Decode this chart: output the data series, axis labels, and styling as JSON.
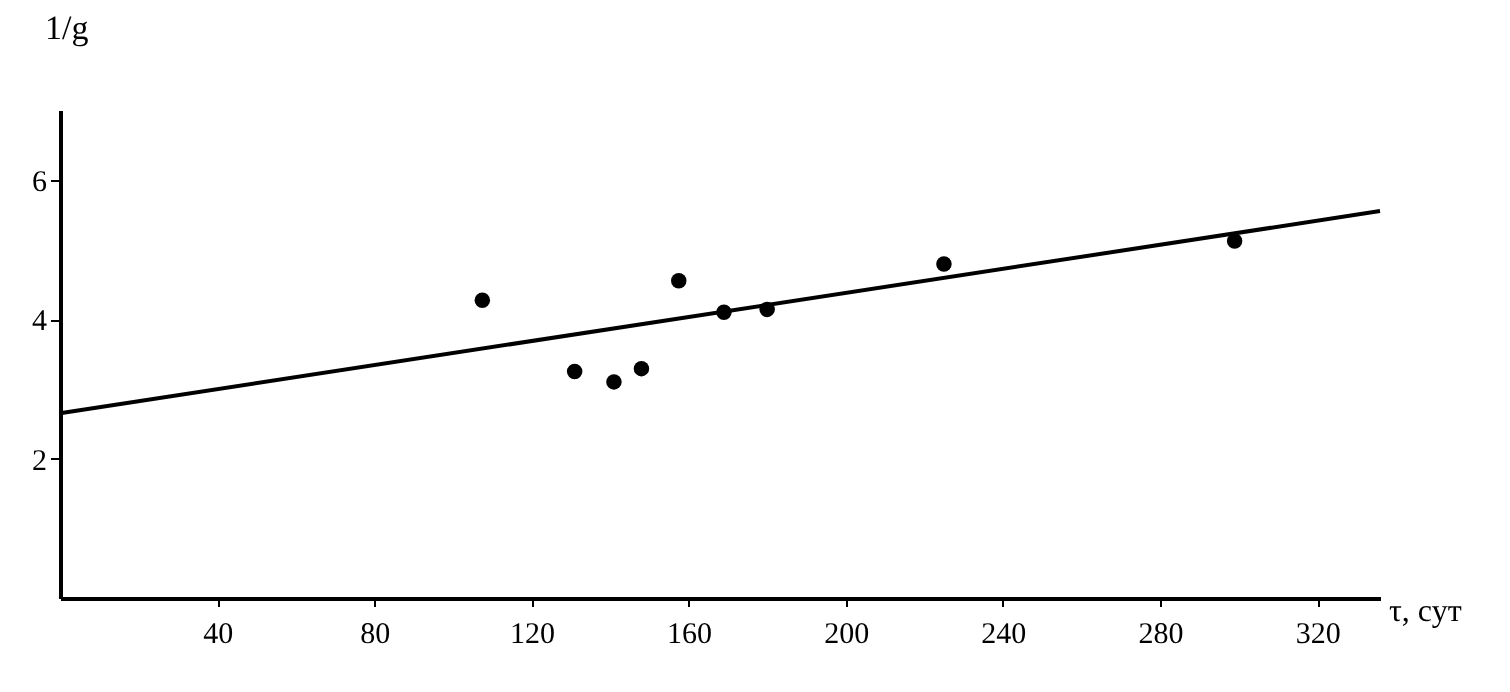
{
  "chart_data": {
    "type": "scatter",
    "xlabel": "τ, сут",
    "ylabel": "1/g",
    "xlim": [
      0,
      336
    ],
    "ylim": [
      0,
      7
    ],
    "xticks": [
      40,
      80,
      120,
      160,
      200,
      240,
      280,
      320
    ],
    "yticks": [
      2,
      4,
      6
    ],
    "grid": false,
    "series": [
      {
        "marker": "circle",
        "color": "#000000",
        "x": [
          107.5,
          131,
          141,
          148,
          157.5,
          169,
          180,
          225,
          299
        ],
        "values": [
          4.27,
          3.25,
          3.1,
          3.29,
          4.55,
          4.1,
          4.14,
          4.79,
          5.12
        ]
      },
      {
        "type": "line",
        "marker": "none",
        "color": "#000000",
        "x": [
          0,
          336
        ],
        "values": [
          2.65,
          5.55
        ]
      }
    ]
  }
}
